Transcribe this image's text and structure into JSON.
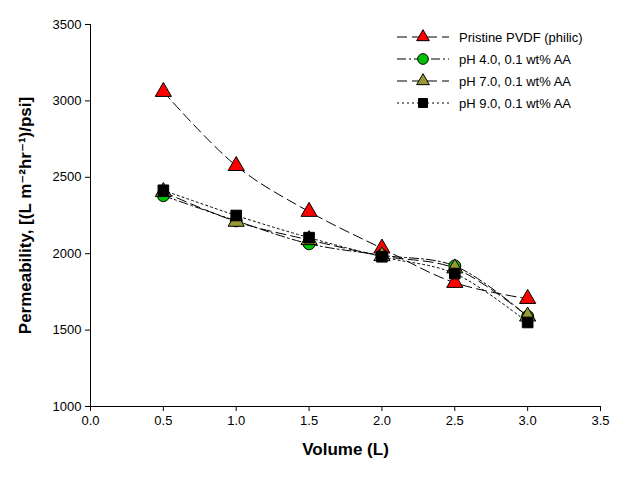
{
  "chart_data": {
    "type": "line",
    "x_label": "Volume (L)",
    "y_label": "Permeability, [(L m⁻²hr⁻¹)/psi]",
    "x": [
      0.5,
      1.0,
      1.5,
      2.0,
      2.5,
      3.0
    ],
    "series": [
      {
        "name": "Pristine PVDF (philic)",
        "color": "#ff0000",
        "marker": "triangle",
        "line_style": "dashed",
        "values": [
          3060,
          2575,
          2275,
          2035,
          1810,
          1705
        ]
      },
      {
        "name": "pH 4.0, 0.1 wt% AA",
        "color": "#00c000",
        "marker": "circle",
        "line_style": "dashdot",
        "values": [
          2380,
          2215,
          2065,
          1990,
          1920,
          1590
        ]
      },
      {
        "name": "pH 7.0, 0.1 wt% AA",
        "color": "#999933",
        "marker": "triangle",
        "line_style": "dashed",
        "values": [
          2405,
          2210,
          2090,
          1985,
          1905,
          1590
        ]
      },
      {
        "name": "pH 9.0, 0.1 wt% AA",
        "color": "#000000",
        "marker": "square",
        "line_style": "dotted",
        "values": [
          2415,
          2250,
          2105,
          1980,
          1870,
          1550
        ]
      }
    ],
    "xlim": [
      0,
      3.5
    ],
    "xticks": [
      {
        "value": 0,
        "label": "0.0"
      },
      0.5,
      {
        "value": 1,
        "label": "1.0"
      },
      1.5,
      {
        "value": 2,
        "label": "2.0"
      },
      2.5,
      {
        "value": 3,
        "label": "3.0"
      },
      3.5
    ],
    "ylim": [
      1000,
      3500
    ],
    "yticks": [
      1000,
      1500,
      2000,
      2500,
      3000,
      3500
    ],
    "grid": false,
    "legend": "top-right"
  }
}
